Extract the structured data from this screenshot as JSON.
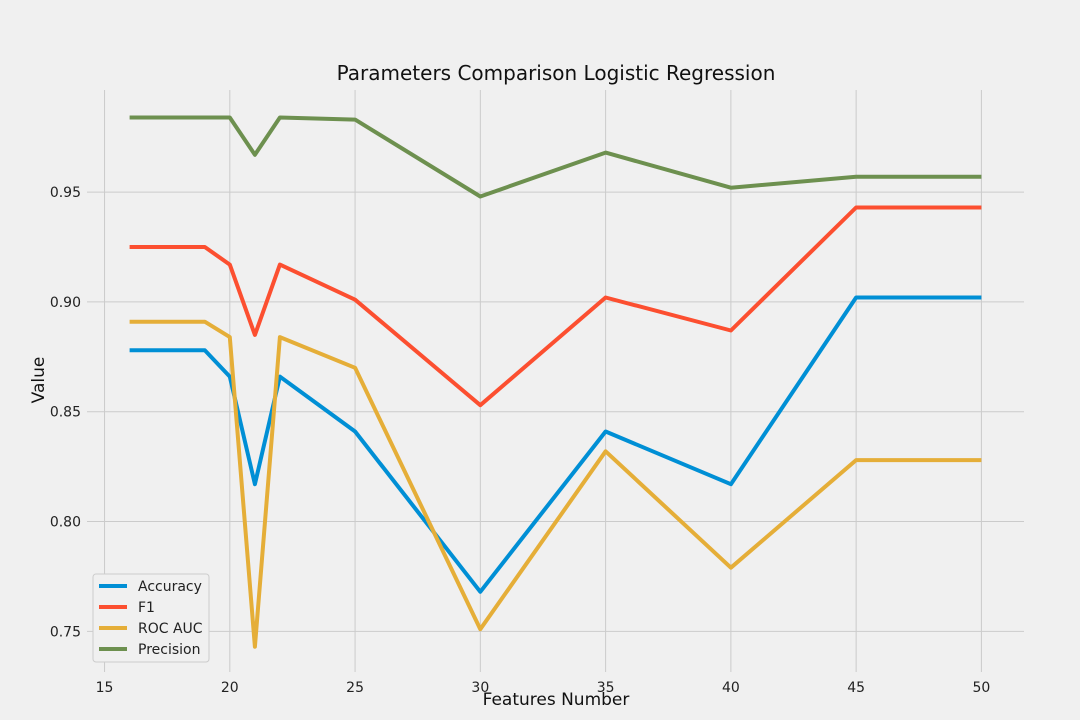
{
  "chart_data": {
    "type": "line",
    "title": "Parameters Comparison Logistic Regression",
    "xlabel": "Features Number",
    "ylabel": "Value",
    "xlim": [
      14.3,
      51.7
    ],
    "ylim": [
      0.7315,
      0.9965
    ],
    "x_ticks": [
      15,
      20,
      25,
      30,
      35,
      40,
      45,
      50
    ],
    "y_ticks": [
      0.75,
      0.8,
      0.85,
      0.9,
      0.95
    ],
    "grid": true,
    "legend_position": "lower-left",
    "x": [
      16,
      19,
      20,
      21,
      22,
      25,
      30,
      35,
      40,
      45,
      50
    ],
    "series": [
      {
        "name": "Accuracy",
        "color": "#008fd5",
        "values": [
          0.878,
          0.878,
          0.866,
          0.817,
          0.866,
          0.841,
          0.768,
          0.841,
          0.817,
          0.902,
          0.902
        ]
      },
      {
        "name": "F1",
        "color": "#fc4f30",
        "values": [
          0.925,
          0.925,
          0.917,
          0.885,
          0.917,
          0.901,
          0.853,
          0.902,
          0.887,
          0.943,
          0.943
        ]
      },
      {
        "name": "ROC AUC",
        "color": "#e5ae38",
        "values": [
          0.891,
          0.891,
          0.884,
          0.743,
          0.884,
          0.87,
          0.751,
          0.832,
          0.779,
          0.828,
          0.828
        ]
      },
      {
        "name": "Precision",
        "color": "#6d904f",
        "values": [
          0.984,
          0.984,
          0.984,
          0.967,
          0.984,
          0.983,
          0.948,
          0.968,
          0.952,
          0.957,
          0.957
        ]
      }
    ]
  }
}
